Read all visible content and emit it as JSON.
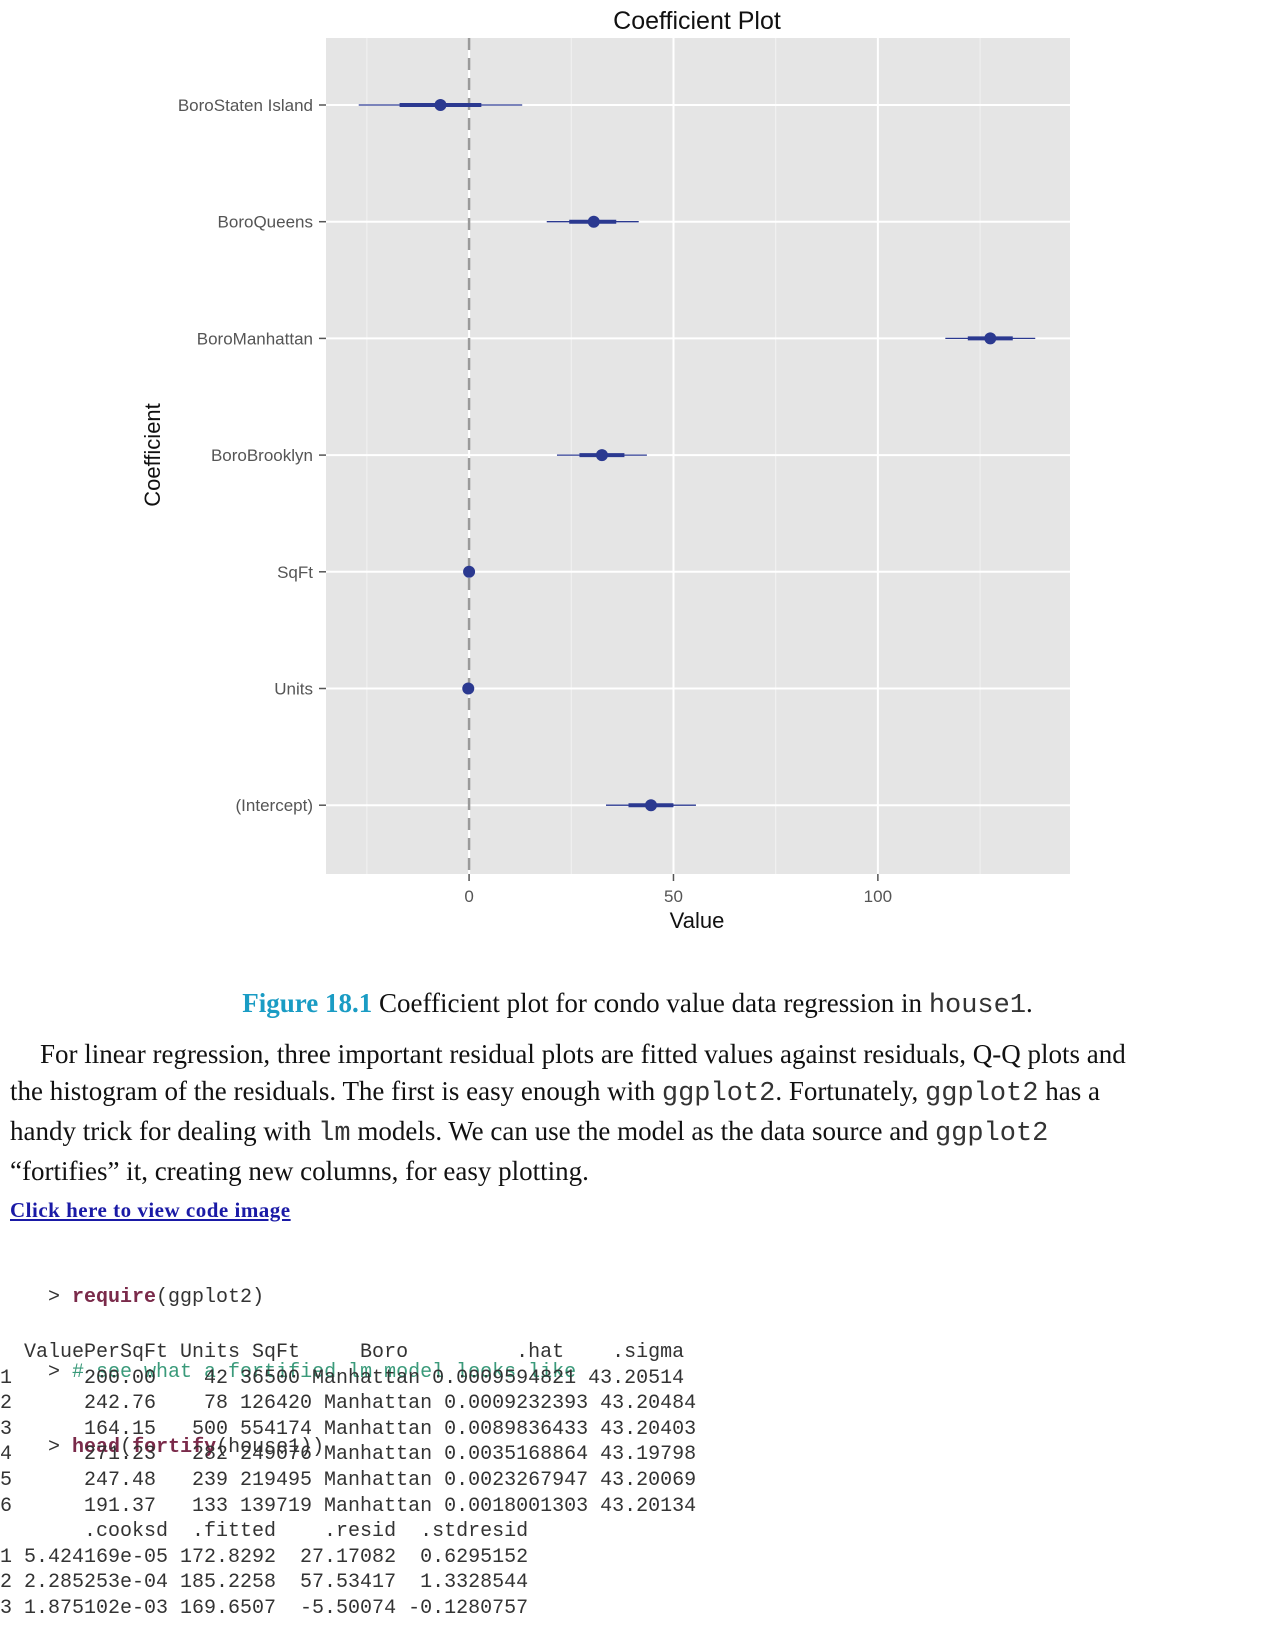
{
  "chart_data": {
    "type": "coefficient_plot",
    "title": "Coefficient Plot",
    "xlabel": "Value",
    "ylabel": "Coefficient",
    "xlim": [
      -35,
      147
    ],
    "x_ticks": [
      0,
      50,
      100
    ],
    "zero_line": 0,
    "grid": true,
    "coefficients": [
      {
        "name": "BoroStaten Island",
        "value": -7,
        "inner": [
          -17,
          3
        ],
        "outer": [
          -27,
          13
        ]
      },
      {
        "name": "BoroQueens",
        "value": 30.5,
        "inner": [
          24.5,
          36
        ],
        "outer": [
          19,
          41.5
        ]
      },
      {
        "name": "BoroManhattan",
        "value": 127.5,
        "inner": [
          122,
          133
        ],
        "outer": [
          116.5,
          138.5
        ]
      },
      {
        "name": "BoroBrooklyn",
        "value": 32.5,
        "inner": [
          27,
          38
        ],
        "outer": [
          21.5,
          43.5
        ]
      },
      {
        "name": "SqFt",
        "value": 0,
        "inner": [
          0,
          0
        ],
        "outer": [
          0,
          0
        ]
      },
      {
        "name": "Units",
        "value": -0.2,
        "inner": [
          -0.2,
          -0.2
        ],
        "outer": [
          -0.2,
          -0.2
        ]
      },
      {
        "name": "(Intercept)",
        "value": 44.5,
        "inner": [
          39,
          50
        ],
        "outer": [
          33.5,
          55.5
        ]
      }
    ],
    "point_color": "#2b3990",
    "panel_color": "#e5e5e5"
  },
  "caption": {
    "label": "Figure 18.1",
    "text": "Coefficient plot for condo value data regression in ",
    "code": "house1",
    "tail": "."
  },
  "paragraph": {
    "line1": "For linear regression, three important residual plots are fitted values against residuals, Q-Q plots and",
    "line2_a": "the histogram of the residuals. The first is easy enough with ",
    "line2_code": "ggplot2",
    "line2_b": ". Fortunately, ",
    "line2_code2": "ggplot2",
    "line2_c": " has a",
    "line3_a": "handy trick for dealing with ",
    "line3_code": "lm",
    "line3_b": " models. We can use the model as the data source and ",
    "line3_code2": "ggplot2",
    "line4": "“fortifies” it, creating new columns, for easy plotting."
  },
  "code_link": "Click here to view code image",
  "code": {
    "line1_prompt": "> ",
    "line1_kw": "require",
    "line1_rest": "(ggplot2)",
    "line2_prompt": "> ",
    "line2_comment": "# see what a fortified lm model looks like",
    "line3_prompt": "> ",
    "line3_kw1": "head",
    "line3_mid": "(",
    "line3_kw2": "fortify",
    "line3_rest": "(house1))"
  },
  "output_lines": [
    "  ValuePerSqFt Units SqFt     Boro         .hat    .sigma",
    "1      200.00    42 36500 Manhattan 0.0009594821 43.20514",
    "2      242.76    78 126420 Manhattan 0.0009232393 43.20484",
    "3      164.15   500 554174 Manhattan 0.0089836433 43.20403",
    "4      271.23   282 249076 Manhattan 0.0035168864 43.19798",
    "5      247.48   239 219495 Manhattan 0.0023267947 43.20069",
    "6      191.37   133 139719 Manhattan 0.0018001303 43.20134",
    "       .cooksd  .fitted    .resid  .stdresid",
    "1 5.424169e-05 172.8292  27.17082  0.6295152",
    "2 2.285253e-04 185.2258  57.53417  1.3328544",
    "3 1.875102e-03 169.6507  -5.50074 -0.1280757"
  ]
}
